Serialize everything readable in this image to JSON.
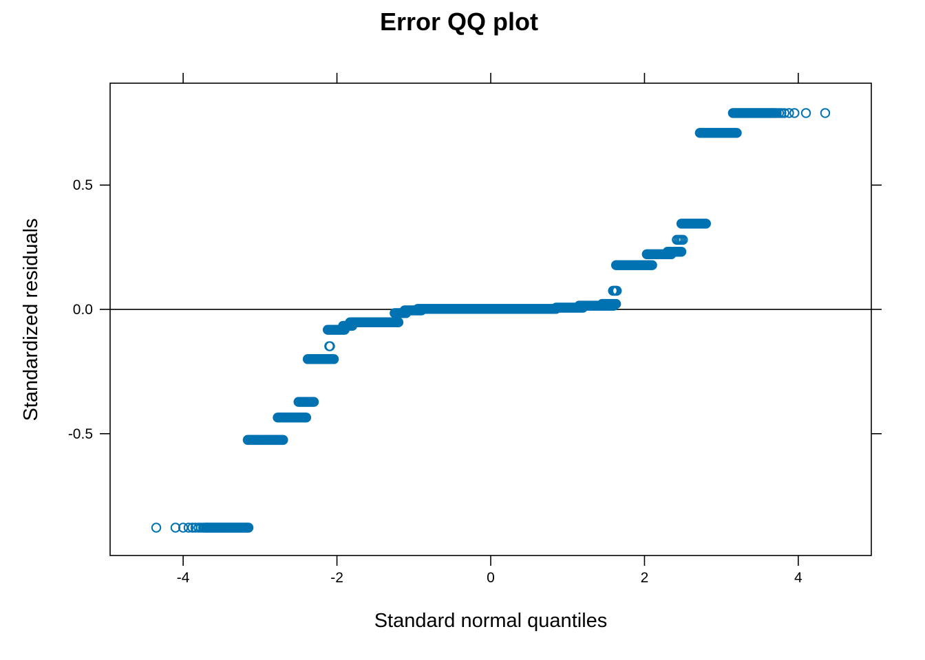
{
  "chart_data": {
    "type": "scatter",
    "title": "Error QQ plot",
    "xlabel": "Standard normal quantiles",
    "ylabel": "Standardized residuals",
    "xlim": [
      -4.95,
      4.95
    ],
    "ylim": [
      -0.99,
      0.91
    ],
    "x_ticks": [
      -4,
      -2,
      0,
      2,
      4
    ],
    "x_tick_labels": [
      "-4",
      "-2",
      "0",
      "2",
      "4"
    ],
    "y_ticks": [
      -0.5,
      0.0,
      0.5
    ],
    "y_tick_labels": [
      "-0.5",
      "0.0",
      "0.5"
    ],
    "reference_line": {
      "intercept": 0.0,
      "slope": 0.0,
      "x1": -4.95,
      "x2": 4.95
    },
    "point_color": "#0072B2",
    "line_color": "#000000",
    "point_style": "open-circle",
    "steps": [
      {
        "y": -0.878,
        "x": [
          -4.35,
          -4.1,
          -4.0,
          -3.93,
          -3.88,
          -3.84,
          -3.8,
          -3.77,
          -3.74,
          -3.72,
          -3.7
        ],
        "x_start": -3.7,
        "x_end": -3.15
      },
      {
        "y": -0.525,
        "x_start": -3.16,
        "x_end": -2.7
      },
      {
        "y": -0.435,
        "x_start": -2.77,
        "x_end": -2.4
      },
      {
        "y": -0.372,
        "x_start": -2.5,
        "x_end": -2.3
      },
      {
        "y": -0.2,
        "x_start": -2.38,
        "x_end": -2.04
      },
      {
        "y": -0.148,
        "x": [
          -2.1,
          -2.09
        ]
      },
      {
        "y": -0.082,
        "x_start": -2.12,
        "x_end": -1.9
      },
      {
        "y": -0.066,
        "x_start": -1.92,
        "x_end": -1.8
      },
      {
        "y": -0.052,
        "x_start": -1.83,
        "x_end": -1.2
      },
      {
        "y": -0.015,
        "x_start": -1.25,
        "x_end": -1.1
      },
      {
        "y": -0.004,
        "x_start": -1.12,
        "x_end": -0.9
      },
      {
        "y": 0.002,
        "x_start": -0.95,
        "x_end": 0.85
      },
      {
        "y": 0.007,
        "x_start": 0.85,
        "x_end": 1.2
      },
      {
        "y": 0.015,
        "x_start": 1.15,
        "x_end": 1.6
      },
      {
        "y": 0.022,
        "x_start": 1.45,
        "x_end": 1.63
      },
      {
        "y": 0.075,
        "x": [
          1.59,
          1.6,
          1.61,
          1.62,
          1.63,
          1.64
        ]
      },
      {
        "y": 0.178,
        "x_start": 1.63,
        "x_end": 2.1
      },
      {
        "y": 0.222,
        "x_start": 2.03,
        "x_end": 2.35
      },
      {
        "y": 0.232,
        "x_start": 2.3,
        "x_end": 2.48
      },
      {
        "y": 0.28,
        "x": [
          2.42,
          2.44,
          2.46,
          2.48,
          2.5
        ]
      },
      {
        "y": 0.345,
        "x_start": 2.48,
        "x_end": 2.8
      },
      {
        "y": 0.71,
        "x_start": 2.72,
        "x_end": 3.2
      },
      {
        "y": 0.79,
        "x_start": 3.15,
        "x_end": 3.7,
        "x": [
          3.72,
          3.75,
          3.78,
          3.82,
          3.88,
          3.95,
          4.1,
          4.35
        ]
      }
    ]
  }
}
